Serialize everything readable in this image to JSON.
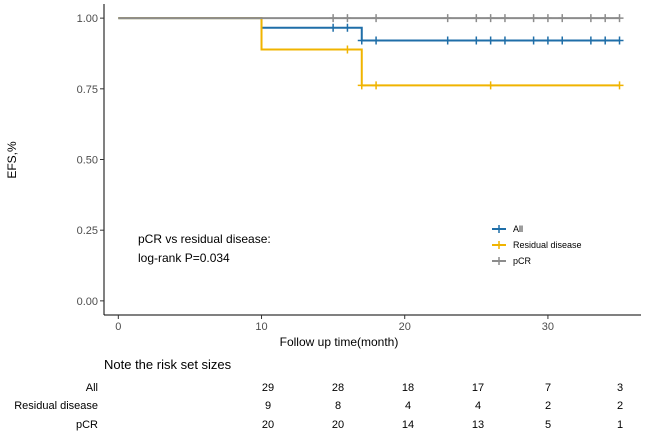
{
  "chart_data": {
    "type": "line",
    "title": "",
    "xlabel": "Follow up time(month)",
    "ylabel": "EFS,%",
    "xlim": [
      -1,
      36.5
    ],
    "ylim": [
      -0.05,
      1.05
    ],
    "x_ticks": [
      0,
      10,
      20,
      30
    ],
    "y_ticks": [
      0.0,
      0.25,
      0.5,
      0.75,
      1.0
    ],
    "y_tick_labels": [
      "0.00",
      "0.25",
      "0.50",
      "0.75",
      "1.00"
    ],
    "grid": false,
    "legend_position": "right",
    "series": [
      {
        "name": "All",
        "color": "#1f6ea8",
        "steps": [
          [
            0,
            1.0
          ],
          [
            10,
            0.966
          ],
          [
            17,
            0.921
          ],
          [
            35,
            0.921
          ]
        ],
        "censor": [
          [
            15,
            0.966
          ],
          [
            16,
            0.966
          ],
          [
            17,
            0.921
          ],
          [
            18,
            0.921
          ],
          [
            23,
            0.921
          ],
          [
            25,
            0.921
          ],
          [
            26,
            0.921
          ],
          [
            27,
            0.921
          ],
          [
            29,
            0.921
          ],
          [
            30,
            0.921
          ],
          [
            31,
            0.921
          ],
          [
            33,
            0.921
          ],
          [
            34,
            0.921
          ],
          [
            35,
            0.921
          ]
        ]
      },
      {
        "name": "Residual disease",
        "color": "#f0b400",
        "steps": [
          [
            0,
            1.0
          ],
          [
            10,
            0.889
          ],
          [
            17,
            0.762
          ],
          [
            35,
            0.762
          ]
        ],
        "censor": [
          [
            16,
            0.889
          ],
          [
            17,
            0.762
          ],
          [
            18,
            0.762
          ],
          [
            26,
            0.762
          ],
          [
            35,
            0.762
          ]
        ]
      },
      {
        "name": "pCR",
        "color": "#8c8c8c",
        "steps": [
          [
            0,
            1.0
          ],
          [
            35,
            1.0
          ]
        ],
        "censor": [
          [
            15,
            1.0
          ],
          [
            16,
            1.0
          ],
          [
            18,
            1.0
          ],
          [
            23,
            1.0
          ],
          [
            25,
            1.0
          ],
          [
            26,
            1.0
          ],
          [
            27,
            1.0
          ],
          [
            29,
            1.0
          ],
          [
            30,
            1.0
          ],
          [
            31,
            1.0
          ],
          [
            33,
            1.0
          ],
          [
            34,
            1.0
          ],
          [
            35,
            1.0
          ]
        ]
      }
    ],
    "annotation": [
      "pCR vs residual disease:",
      "log-rank P=0.034"
    ],
    "risk_table": {
      "title": "Note the risk set sizes",
      "rows": [
        {
          "name": "All",
          "color": "#1f6ea8",
          "values": [
            "29",
            "28",
            "18",
            "17",
            "7",
            "3"
          ]
        },
        {
          "name": "Residual disease",
          "color": "#f0b400",
          "values": [
            "9",
            "8",
            "4",
            "4",
            "2",
            "2"
          ]
        },
        {
          "name": "pCR",
          "color": "#8c8c8c",
          "values": [
            "20",
            "20",
            "14",
            "13",
            "5",
            "1"
          ]
        }
      ]
    }
  }
}
